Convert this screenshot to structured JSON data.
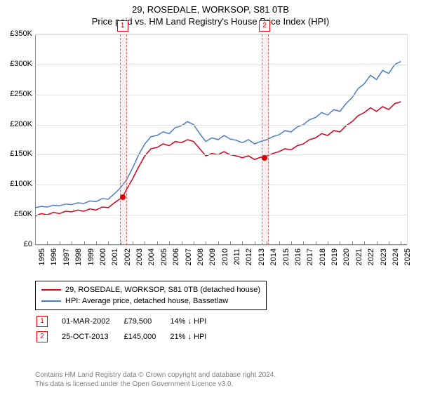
{
  "title": "29, ROSEDALE, WORKSOP, S81 0TB",
  "subtitle": "Price paid vs. HM Land Registry's House Price Index (HPI)",
  "chart": {
    "type": "line",
    "background_color": "#ffffff",
    "grid_color": "#e0e0e0",
    "axis_color": "#888888",
    "xlim": [
      1995,
      2025.5
    ],
    "ylim": [
      0,
      350000
    ],
    "ytick_step": 50000,
    "ytick_labels": [
      "£0",
      "£50K",
      "£100K",
      "£150K",
      "£200K",
      "£250K",
      "£300K",
      "£350K"
    ],
    "xticks": [
      1995,
      1996,
      1997,
      1998,
      1999,
      2000,
      2001,
      2002,
      2003,
      2004,
      2005,
      2006,
      2007,
      2008,
      2009,
      2010,
      2011,
      2012,
      2013,
      2014,
      2015,
      2016,
      2017,
      2018,
      2019,
      2020,
      2021,
      2022,
      2023,
      2024,
      2025
    ],
    "label_fontsize": 11,
    "series": [
      {
        "name": "29, ROSEDALE, WORKSOP, S81 0TB (detached house)",
        "color": "#d6001c",
        "line_width": 1.5,
        "points": [
          [
            1995,
            48000
          ],
          [
            1995.5,
            52000
          ],
          [
            1996,
            50000
          ],
          [
            1996.5,
            54000
          ],
          [
            1997,
            52000
          ],
          [
            1997.5,
            56000
          ],
          [
            1998,
            55000
          ],
          [
            1998.5,
            58000
          ],
          [
            1999,
            56000
          ],
          [
            1999.5,
            60000
          ],
          [
            2000,
            58000
          ],
          [
            2000.5,
            63000
          ],
          [
            2001,
            62000
          ],
          [
            2001.5,
            70000
          ],
          [
            2002.17,
            79500
          ],
          [
            2002.5,
            92000
          ],
          [
            2003,
            110000
          ],
          [
            2003.5,
            130000
          ],
          [
            2004,
            148000
          ],
          [
            2004.5,
            160000
          ],
          [
            2005,
            162000
          ],
          [
            2005.5,
            168000
          ],
          [
            2006,
            165000
          ],
          [
            2006.5,
            172000
          ],
          [
            2007,
            170000
          ],
          [
            2007.5,
            175000
          ],
          [
            2008,
            172000
          ],
          [
            2008.5,
            160000
          ],
          [
            2009,
            148000
          ],
          [
            2009.5,
            152000
          ],
          [
            2010,
            150000
          ],
          [
            2010.5,
            155000
          ],
          [
            2011,
            150000
          ],
          [
            2011.5,
            148000
          ],
          [
            2012,
            145000
          ],
          [
            2012.5,
            148000
          ],
          [
            2013,
            142000
          ],
          [
            2013.5,
            146000
          ],
          [
            2013.82,
            145000
          ],
          [
            2014,
            148000
          ],
          [
            2014.5,
            152000
          ],
          [
            2015,
            155000
          ],
          [
            2015.5,
            160000
          ],
          [
            2016,
            158000
          ],
          [
            2016.5,
            165000
          ],
          [
            2017,
            168000
          ],
          [
            2017.5,
            175000
          ],
          [
            2018,
            178000
          ],
          [
            2018.5,
            185000
          ],
          [
            2019,
            182000
          ],
          [
            2019.5,
            190000
          ],
          [
            2020,
            188000
          ],
          [
            2020.5,
            198000
          ],
          [
            2021,
            205000
          ],
          [
            2021.5,
            215000
          ],
          [
            2022,
            220000
          ],
          [
            2022.5,
            228000
          ],
          [
            2023,
            222000
          ],
          [
            2023.5,
            230000
          ],
          [
            2024,
            225000
          ],
          [
            2024.5,
            235000
          ],
          [
            2025,
            238000
          ]
        ]
      },
      {
        "name": "HPI: Average price, detached house, Bassetlaw",
        "color": "#4a7ec8",
        "line_width": 1.5,
        "points": [
          [
            1995,
            62000
          ],
          [
            1995.5,
            64000
          ],
          [
            1996,
            63000
          ],
          [
            1996.5,
            66000
          ],
          [
            1997,
            65000
          ],
          [
            1997.5,
            68000
          ],
          [
            1998,
            67000
          ],
          [
            1998.5,
            70000
          ],
          [
            1999,
            69000
          ],
          [
            1999.5,
            73000
          ],
          [
            2000,
            72000
          ],
          [
            2000.5,
            77000
          ],
          [
            2001,
            76000
          ],
          [
            2001.5,
            85000
          ],
          [
            2002,
            95000
          ],
          [
            2002.5,
            108000
          ],
          [
            2003,
            128000
          ],
          [
            2003.5,
            150000
          ],
          [
            2004,
            168000
          ],
          [
            2004.5,
            180000
          ],
          [
            2005,
            182000
          ],
          [
            2005.5,
            188000
          ],
          [
            2006,
            185000
          ],
          [
            2006.5,
            195000
          ],
          [
            2007,
            198000
          ],
          [
            2007.5,
            205000
          ],
          [
            2008,
            200000
          ],
          [
            2008.5,
            185000
          ],
          [
            2009,
            172000
          ],
          [
            2009.5,
            178000
          ],
          [
            2010,
            175000
          ],
          [
            2010.5,
            182000
          ],
          [
            2011,
            176000
          ],
          [
            2011.5,
            174000
          ],
          [
            2012,
            170000
          ],
          [
            2012.5,
            175000
          ],
          [
            2013,
            168000
          ],
          [
            2013.5,
            172000
          ],
          [
            2014,
            175000
          ],
          [
            2014.5,
            180000
          ],
          [
            2015,
            183000
          ],
          [
            2015.5,
            190000
          ],
          [
            2016,
            188000
          ],
          [
            2016.5,
            196000
          ],
          [
            2017,
            200000
          ],
          [
            2017.5,
            208000
          ],
          [
            2018,
            212000
          ],
          [
            2018.5,
            220000
          ],
          [
            2019,
            216000
          ],
          [
            2019.5,
            225000
          ],
          [
            2020,
            222000
          ],
          [
            2020.5,
            235000
          ],
          [
            2021,
            245000
          ],
          [
            2021.5,
            260000
          ],
          [
            2022,
            268000
          ],
          [
            2022.5,
            282000
          ],
          [
            2023,
            275000
          ],
          [
            2023.5,
            290000
          ],
          [
            2024,
            285000
          ],
          [
            2024.5,
            300000
          ],
          [
            2025,
            305000
          ]
        ]
      }
    ],
    "markers": [
      {
        "num": "1",
        "x": 2002.17,
        "y": 79500,
        "dot": true
      },
      {
        "num": "2",
        "x": 2013.82,
        "y": 145000,
        "dot": true
      }
    ]
  },
  "legend": {
    "rows": [
      {
        "color": "#d6001c",
        "label": "29, ROSEDALE, WORKSOP, S81 0TB (detached house)"
      },
      {
        "color": "#4a7ec8",
        "label": "HPI: Average price, detached house, Bassetlaw"
      }
    ]
  },
  "transactions": [
    {
      "num": "1",
      "date": "01-MAR-2002",
      "price": "£79,500",
      "delta": "14% ↓ HPI"
    },
    {
      "num": "2",
      "date": "25-OCT-2013",
      "price": "£145,000",
      "delta": "21% ↓ HPI"
    }
  ],
  "footer": {
    "line1": "Contains HM Land Registry data © Crown copyright and database right 2024.",
    "line2": "This data is licensed under the Open Government Licence v3.0."
  }
}
